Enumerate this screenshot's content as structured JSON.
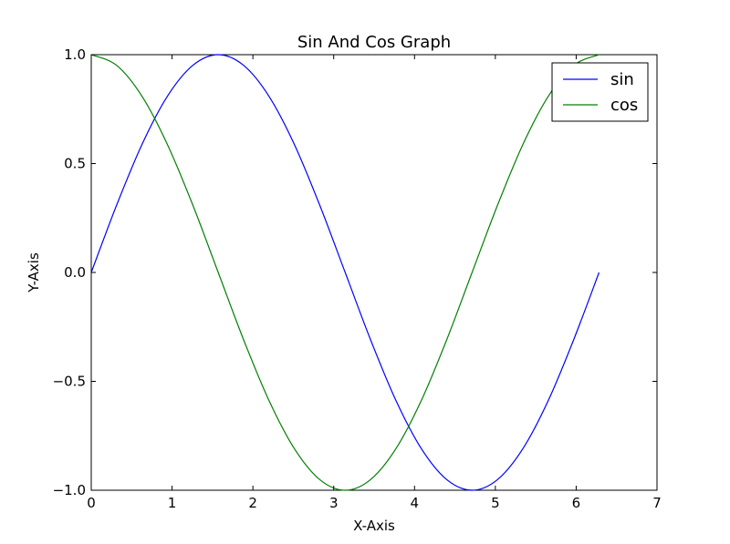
{
  "chart_data": {
    "type": "line",
    "title": "Sin And Cos Graph",
    "xlabel": "X-Axis",
    "ylabel": "Y-Axis",
    "xlim": [
      0,
      7
    ],
    "ylim": [
      -1.0,
      1.0
    ],
    "xticks": [
      0,
      1,
      2,
      3,
      4,
      5,
      6,
      7
    ],
    "xtick_labels": [
      "0",
      "1",
      "2",
      "3",
      "4",
      "5",
      "6",
      "7"
    ],
    "yticks": [
      1.0,
      0.5,
      0.0,
      -0.5,
      -1.0
    ],
    "ytick_labels": [
      "1.0",
      "0.5",
      "0.0",
      "−0.5",
      "−1.0"
    ],
    "grid": false,
    "legend_position": "top-right",
    "series": [
      {
        "name": "sin",
        "color": "#0000ff",
        "x": [
          0,
          0.314,
          0.628,
          0.942,
          1.257,
          1.571,
          1.885,
          2.199,
          2.513,
          2.827,
          3.142,
          3.456,
          3.77,
          4.084,
          4.398,
          4.712,
          5.027,
          5.341,
          5.655,
          5.969,
          6.283
        ],
        "y": [
          0,
          0.309,
          0.588,
          0.809,
          0.951,
          1.0,
          0.951,
          0.809,
          0.588,
          0.309,
          0,
          -0.309,
          -0.588,
          -0.809,
          -0.951,
          -1.0,
          -0.951,
          -0.809,
          -0.588,
          -0.309,
          0
        ]
      },
      {
        "name": "cos",
        "color": "#008000",
        "x": [
          0,
          0.314,
          0.628,
          0.942,
          1.257,
          1.571,
          1.885,
          2.199,
          2.513,
          2.827,
          3.142,
          3.456,
          3.77,
          4.084,
          4.398,
          4.712,
          5.027,
          5.341,
          5.655,
          5.969,
          6.283
        ],
        "y": [
          1.0,
          0.951,
          0.809,
          0.588,
          0.309,
          0,
          -0.309,
          -0.588,
          -0.809,
          -0.951,
          -1.0,
          -0.951,
          -0.809,
          -0.588,
          -0.309,
          0,
          0.309,
          0.588,
          0.809,
          0.951,
          1.0
        ]
      }
    ]
  }
}
